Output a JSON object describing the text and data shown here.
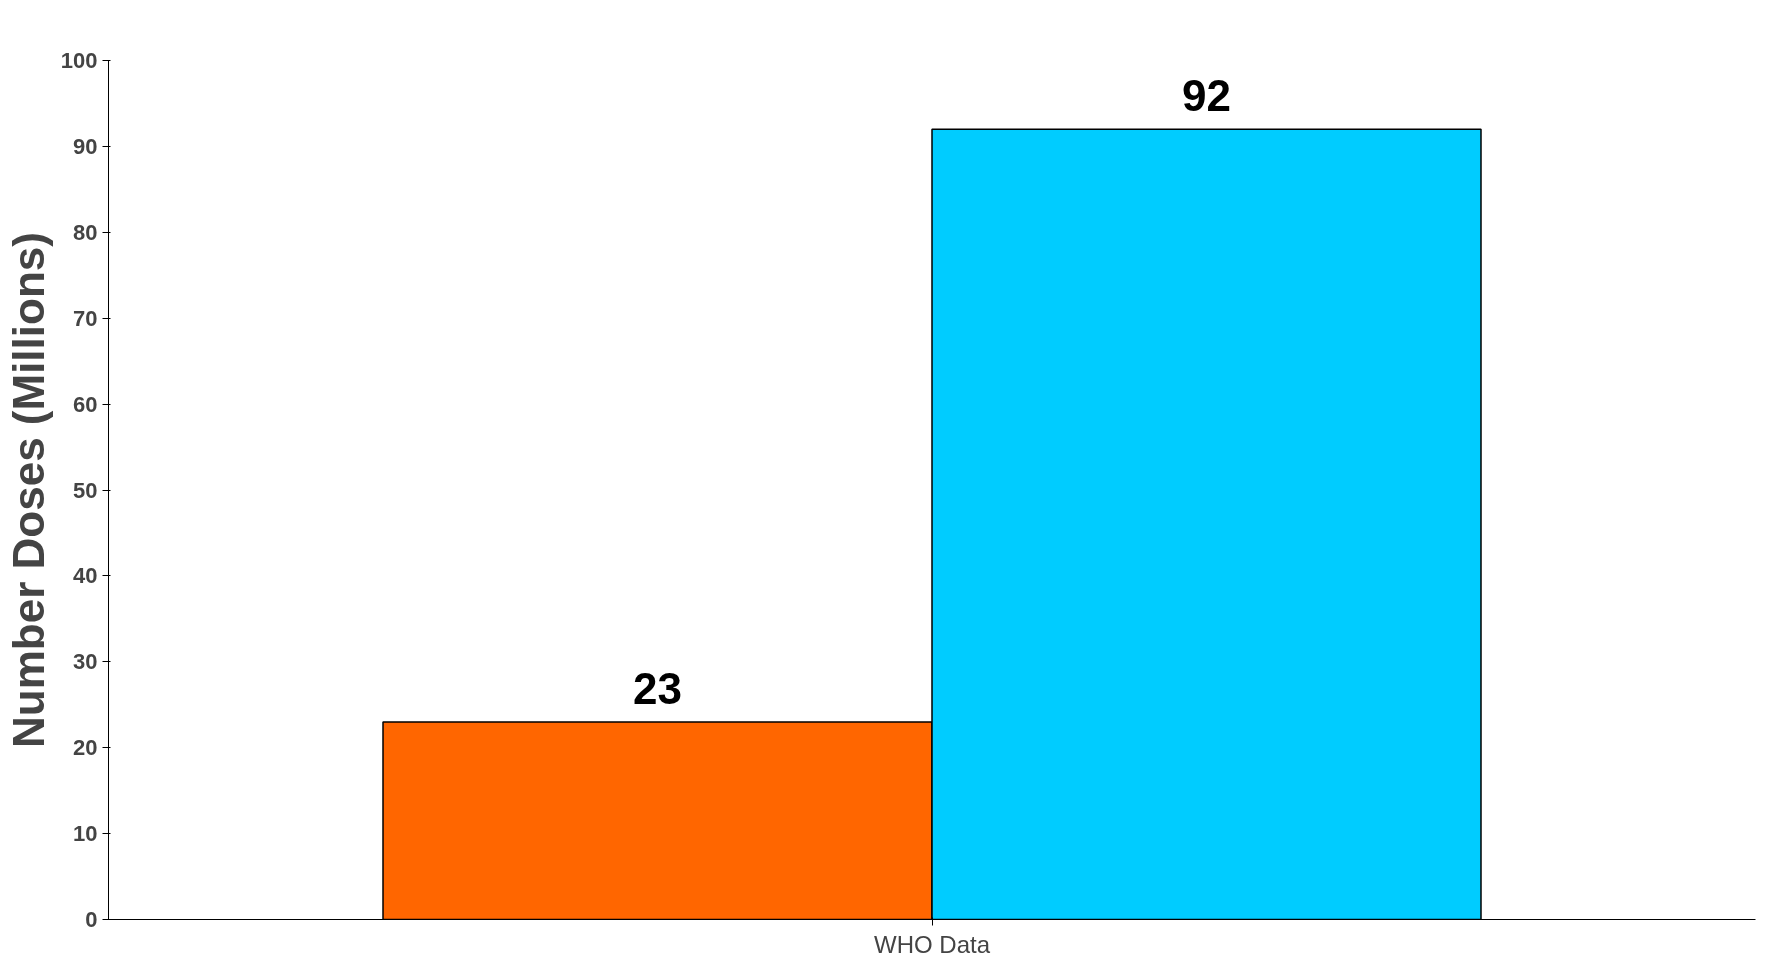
{
  "chart_data": {
    "type": "bar",
    "ylabel": "Number Doses (Millions)",
    "categories": [
      "WHO Data"
    ],
    "series": [
      {
        "color": "#ff6600",
        "values": [
          23
        ]
      },
      {
        "color": "#00ccff",
        "values": [
          92
        ]
      }
    ],
    "ylim": [
      0,
      100
    ],
    "yticks": [
      0,
      10,
      20,
      30,
      40,
      50,
      60,
      70,
      80,
      90,
      100
    ],
    "grid": false,
    "data_labels": true
  }
}
